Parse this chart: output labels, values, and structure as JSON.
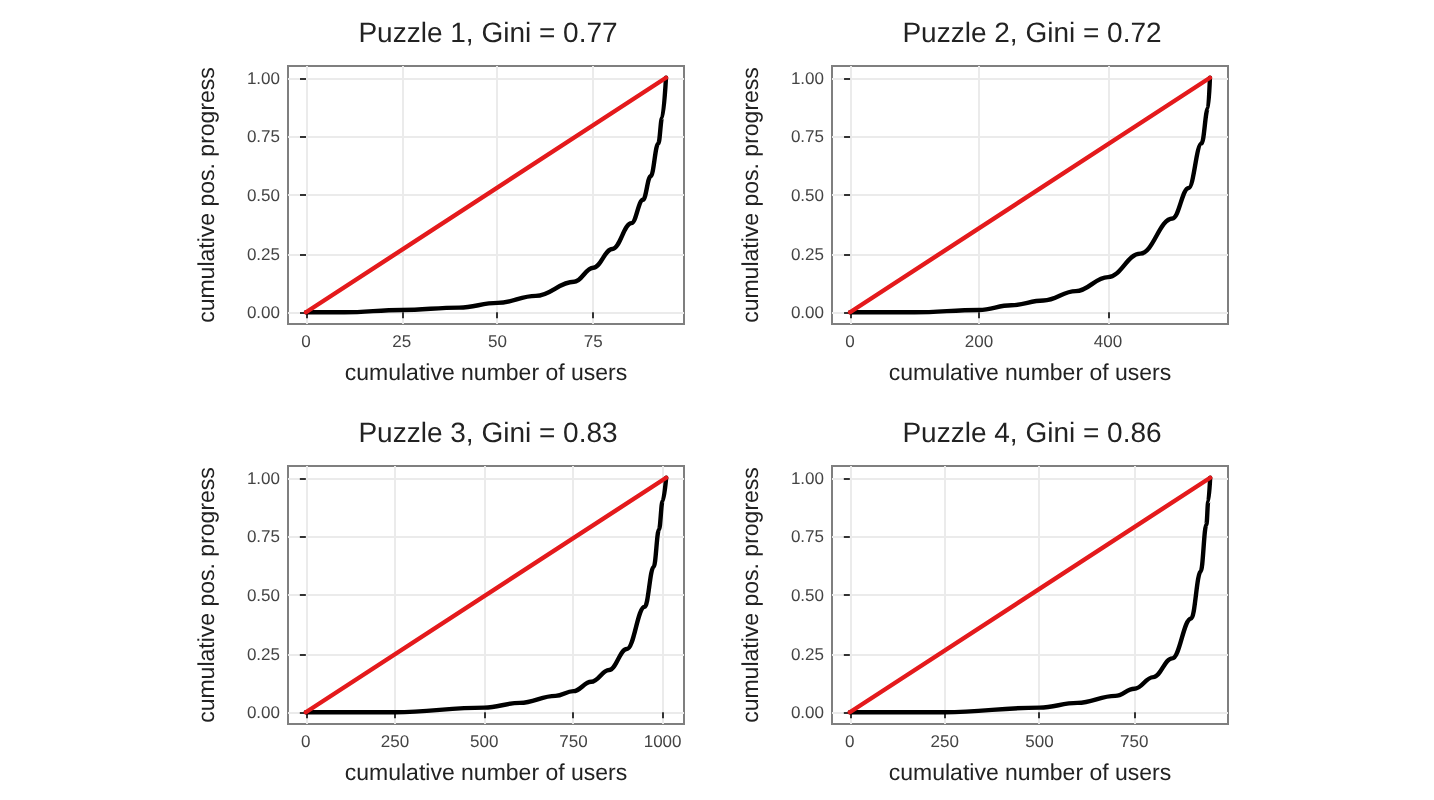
{
  "chart_data": [
    {
      "type": "line",
      "title": "Puzzle 1, Gini = 0.77",
      "xlabel": "cumulative number of users",
      "ylabel": "cumulative pos. progress",
      "xlim": [
        -4.7,
        98.7
      ],
      "xticks": [
        0,
        25,
        50,
        75
      ],
      "ylim": [
        -0.05,
        1.05
      ],
      "yticks": [
        {
          "value": 0,
          "label": "0.00"
        },
        {
          "value": 0.25,
          "label": "0.25"
        },
        {
          "value": 0.5,
          "label": "0.50"
        },
        {
          "value": 0.75,
          "label": "0.75"
        },
        {
          "value": 1,
          "label": "1.00"
        }
      ],
      "grid": true,
      "marker": "none",
      "line_style": "solid",
      "series": [
        {
          "color": "#000000",
          "x": [
            0,
            10,
            25,
            40,
            50,
            60,
            70,
            75,
            80,
            85,
            88,
            90,
            92,
            93,
            94
          ],
          "values": [
            0,
            0,
            0.01,
            0.02,
            0.04,
            0.07,
            0.13,
            0.19,
            0.27,
            0.38,
            0.48,
            0.58,
            0.72,
            0.83,
            1
          ]
        },
        {
          "color": "#e41a1c",
          "x": [
            0,
            94
          ],
          "values": [
            0,
            1
          ]
        }
      ]
    },
    {
      "type": "line",
      "title": "Puzzle 2, Gini = 0.72",
      "xlabel": "cumulative number of users",
      "ylabel": "cumulative pos. progress",
      "xlim": [
        -28,
        586
      ],
      "xticks": [
        0,
        200,
        400
      ],
      "ylim": [
        -0.05,
        1.05
      ],
      "yticks": [
        {
          "value": 0,
          "label": "0.00"
        },
        {
          "value": 0.25,
          "label": "0.25"
        },
        {
          "value": 0.5,
          "label": "0.50"
        },
        {
          "value": 0.75,
          "label": "0.75"
        },
        {
          "value": 1,
          "label": "1.00"
        }
      ],
      "grid": true,
      "marker": "none",
      "line_style": "solid",
      "series": [
        {
          "color": "#000000",
          "x": [
            0,
            100,
            200,
            250,
            300,
            350,
            400,
            450,
            500,
            525,
            545,
            555,
            558
          ],
          "values": [
            0,
            0,
            0.01,
            0.03,
            0.05,
            0.09,
            0.15,
            0.25,
            0.4,
            0.53,
            0.72,
            0.87,
            1
          ]
        },
        {
          "color": "#e41a1c",
          "x": [
            0,
            558
          ],
          "values": [
            0,
            1
          ]
        }
      ]
    },
    {
      "type": "line",
      "title": "Puzzle 3, Gini = 0.83",
      "xlabel": "cumulative number of users",
      "ylabel": "cumulative pos. progress",
      "xlim": [
        -50,
        1060
      ],
      "xticks": [
        0,
        250,
        500,
        750,
        1000
      ],
      "ylim": [
        -0.05,
        1.05
      ],
      "yticks": [
        {
          "value": 0,
          "label": "0.00"
        },
        {
          "value": 0.25,
          "label": "0.25"
        },
        {
          "value": 0.5,
          "label": "0.50"
        },
        {
          "value": 0.75,
          "label": "0.75"
        },
        {
          "value": 1,
          "label": "1.00"
        }
      ],
      "grid": true,
      "marker": "none",
      "line_style": "solid",
      "series": [
        {
          "color": "#000000",
          "x": [
            0,
            250,
            500,
            600,
            700,
            750,
            800,
            850,
            900,
            950,
            975,
            990,
            1000,
            1010
          ],
          "values": [
            0,
            0,
            0.02,
            0.04,
            0.07,
            0.09,
            0.13,
            0.18,
            0.27,
            0.45,
            0.62,
            0.78,
            0.9,
            1
          ]
        },
        {
          "color": "#e41a1c",
          "x": [
            0,
            1010
          ],
          "values": [
            0,
            1
          ]
        }
      ]
    },
    {
      "type": "line",
      "title": "Puzzle 4, Gini = 0.86",
      "xlabel": "cumulative number of users",
      "ylabel": "cumulative pos. progress",
      "xlim": [
        -47,
        997
      ],
      "xticks": [
        0,
        250,
        500,
        750
      ],
      "ylim": [
        -0.05,
        1.05
      ],
      "yticks": [
        {
          "value": 0,
          "label": "0.00"
        },
        {
          "value": 0.25,
          "label": "0.25"
        },
        {
          "value": 0.5,
          "label": "0.50"
        },
        {
          "value": 0.75,
          "label": "0.75"
        },
        {
          "value": 1,
          "label": "1.00"
        }
      ],
      "grid": true,
      "marker": "none",
      "line_style": "solid",
      "series": [
        {
          "color": "#000000",
          "x": [
            0,
            250,
            500,
            600,
            700,
            750,
            800,
            850,
            900,
            925,
            940,
            945,
            950
          ],
          "values": [
            0,
            0,
            0.02,
            0.04,
            0.07,
            0.1,
            0.15,
            0.23,
            0.4,
            0.6,
            0.8,
            0.9,
            1
          ]
        },
        {
          "color": "#e41a1c",
          "x": [
            0,
            950
          ],
          "values": [
            0,
            1
          ]
        }
      ]
    }
  ]
}
